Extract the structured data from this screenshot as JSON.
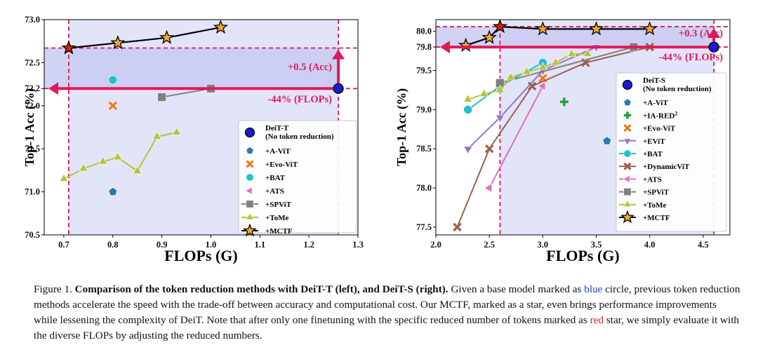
{
  "chart_data": [
    {
      "type": "scatter",
      "panel": "left",
      "xlabel": "FLOPs (G)",
      "ylabel": "Top-1 Acc (%)",
      "xlim": [
        0.66,
        1.3
      ],
      "ylim": [
        70.5,
        73.0
      ],
      "xticks": [
        0.7,
        0.8,
        0.9,
        1.0,
        1.1,
        1.2,
        1.3
      ],
      "yticks": [
        70.5,
        71.0,
        71.5,
        72.0,
        72.2,
        72.5,
        73.0
      ],
      "xtick_labels": [
        "0.7",
        "0.8",
        "0.9",
        "1.0",
        "1.1",
        "1.2",
        "1.3"
      ],
      "ytick_labels": [
        "70.5",
        "71.0",
        "71.5",
        "72.0",
        "72.2",
        "72.5",
        "73.0"
      ],
      "base": {
        "name": "DeiT-T",
        "note": "(No token reduction)",
        "x": 1.26,
        "y": 72.2,
        "color": "#1a1ad0"
      },
      "series": [
        {
          "name": "+A-ViT",
          "marker": "pentagon",
          "color": "#2a7ab0",
          "line": false,
          "x": [
            0.8
          ],
          "y": [
            71.0
          ]
        },
        {
          "name": "+Evo-ViT",
          "marker": "x",
          "color": "#f07a1a",
          "line": false,
          "x": [
            0.8
          ],
          "y": [
            72.0
          ]
        },
        {
          "name": "+BAT",
          "marker": "circle",
          "color": "#20c0d0",
          "line": false,
          "x": [
            0.8
          ],
          "y": [
            72.3
          ]
        },
        {
          "name": "+ATS",
          "marker": "triangle-left",
          "color": "#e070c0",
          "line": false,
          "x": [
            0.9
          ],
          "y": [
            72.1
          ]
        },
        {
          "name": "+SPViT",
          "marker": "square",
          "color": "#808080",
          "line": true,
          "x": [
            0.9,
            1.0
          ],
          "y": [
            72.1,
            72.2
          ]
        },
        {
          "name": "+ToMe",
          "marker": "triangle-up",
          "color": "#b8c23a",
          "line": true,
          "x": [
            0.7,
            0.74,
            0.78,
            0.81,
            0.85,
            0.89,
            0.93
          ],
          "y": [
            71.15,
            71.27,
            71.35,
            71.4,
            71.24,
            71.64,
            71.69
          ]
        },
        {
          "name": "+MCTF",
          "marker": "star",
          "color": "#f2a830",
          "line": true,
          "x": [
            0.71,
            0.81,
            0.91,
            1.02
          ],
          "y": [
            72.67,
            72.73,
            72.79,
            72.91
          ]
        }
      ],
      "highlight": {
        "x": 0.71,
        "y": 72.67
      },
      "annotations": {
        "acc": "+0.5 (Acc)",
        "flops": "-44% (FLOPs)"
      }
    },
    {
      "type": "scatter",
      "panel": "right",
      "xlabel": "FLOPs (G)",
      "ylabel": "Top-1 Acc (%)",
      "xlim": [
        2.0,
        4.75
      ],
      "ylim": [
        77.4,
        80.15
      ],
      "xticks": [
        2.0,
        2.5,
        3.0,
        3.5,
        4.0,
        4.5
      ],
      "yticks": [
        77.5,
        78.0,
        78.5,
        79.0,
        79.5,
        79.8,
        80.0
      ],
      "xtick_labels": [
        "2.0",
        "2.5",
        "3.0",
        "3.5",
        "4.0",
        "4.5"
      ],
      "ytick_labels": [
        "77.5",
        "78.0",
        "78.5",
        "79.0",
        "79.5",
        "79.8",
        "80.0"
      ],
      "base": {
        "name": "DeiT-S",
        "note": "(No token reduction)",
        "x": 4.6,
        "y": 79.8,
        "color": "#1a1ad0"
      },
      "series": [
        {
          "name": "+A-ViT",
          "marker": "pentagon",
          "color": "#2a7ab0",
          "line": false,
          "x": [
            3.6
          ],
          "y": [
            78.6
          ]
        },
        {
          "name": "+IA-RED",
          "sup": "2",
          "marker": "plus",
          "color": "#2a9e3a",
          "line": false,
          "x": [
            3.2
          ],
          "y": [
            79.1
          ]
        },
        {
          "name": "+Evo-ViT",
          "marker": "x",
          "color": "#f07a1a",
          "line": false,
          "x": [
            3.0
          ],
          "y": [
            79.4
          ]
        },
        {
          "name": "+EViT",
          "marker": "triangle-down",
          "color": "#9a70d0",
          "line": true,
          "x": [
            2.3,
            2.6,
            3.0,
            3.5
          ],
          "y": [
            78.5,
            78.9,
            79.5,
            79.8
          ]
        },
        {
          "name": "+BAT",
          "marker": "circle",
          "color": "#20c0d0",
          "line": true,
          "x": [
            2.3,
            2.6,
            3.0
          ],
          "y": [
            79.0,
            79.3,
            79.6
          ]
        },
        {
          "name": "+DynamicViT",
          "marker": "x",
          "color": "#9a6050",
          "line": true,
          "x": [
            2.2,
            2.5,
            2.9,
            3.4,
            4.0
          ],
          "y": [
            77.5,
            78.5,
            79.3,
            79.6,
            79.8
          ]
        },
        {
          "name": "+ATS",
          "marker": "triangle-left",
          "color": "#e070c0",
          "line": true,
          "x": [
            2.5,
            3.0
          ],
          "y": [
            78.0,
            79.3
          ]
        },
        {
          "name": "+SPViT",
          "marker": "square",
          "color": "#808080",
          "line": true,
          "x": [
            2.6,
            3.85
          ],
          "y": [
            79.34,
            79.8
          ]
        },
        {
          "name": "+ToMe",
          "marker": "triangle-up",
          "color": "#b8c23a",
          "line": true,
          "x": [
            2.3,
            2.45,
            2.6,
            2.7,
            2.85,
            3.0,
            3.12,
            3.27,
            3.42
          ],
          "y": [
            79.13,
            79.2,
            79.25,
            79.41,
            79.48,
            79.54,
            79.6,
            79.71,
            79.71
          ]
        },
        {
          "name": "+MCTF",
          "marker": "star",
          "color": "#f2a830",
          "line": true,
          "x": [
            2.28,
            2.5,
            2.6,
            3.0,
            3.5,
            4.0
          ],
          "y": [
            79.82,
            79.92,
            80.06,
            80.03,
            80.03,
            80.03
          ]
        }
      ],
      "highlight": {
        "x": 2.6,
        "y": 80.06
      },
      "annotations": {
        "acc": "+0.3 (Acc)",
        "flops": "-44% (FLOPs)"
      }
    }
  ],
  "caption": {
    "label": "Figure 1.",
    "title": "Comparison of the token reduction methods with DeiT-T (left), and DeiT-S (right).",
    "text1": "Given a base model marked as",
    "blue_word": "blue",
    "text2": "circle, previous token reduction methods accelerate the speed with the trade-off between accuracy and computational cost. Our MCTF, marked as a star, even brings performance improvements while lessening the complexity of DeiT. Note that after only one finetuning with the specific reduced number of tokens marked as",
    "red_word": "red",
    "text3": "star, we simply evaluate it with the diverse FLOPs by adjusting the reduced numbers."
  }
}
